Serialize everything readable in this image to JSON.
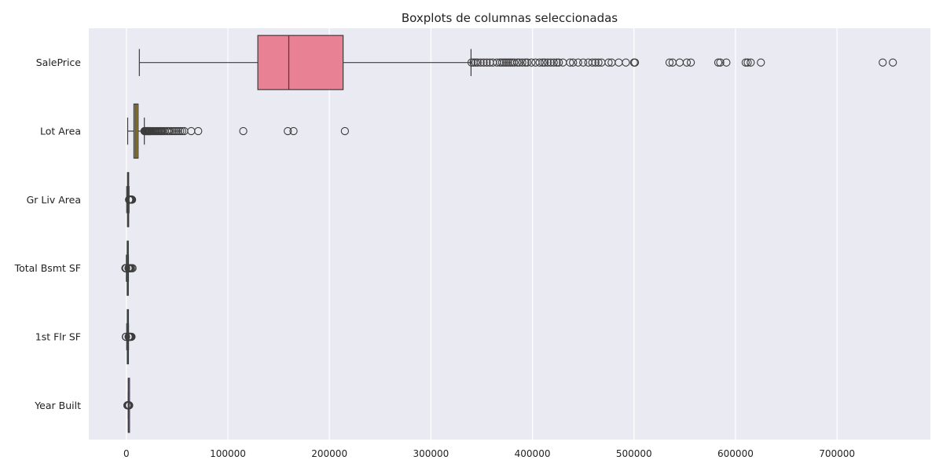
{
  "chart_data": {
    "type": "boxplot",
    "orientation": "horizontal",
    "title": "Boxplots de columnas seleccionadas",
    "xlabel": "",
    "ylabel": "",
    "xlim": [
      -37000,
      792000
    ],
    "x_ticks": [
      0,
      100000,
      200000,
      300000,
      400000,
      500000,
      600000,
      700000
    ],
    "x_tick_labels": [
      "0",
      "100000",
      "200000",
      "300000",
      "400000",
      "500000",
      "600000",
      "700000"
    ],
    "grid": true,
    "legend": "none",
    "background": "#eaeaf2",
    "grid_color": "#ffffff",
    "series": [
      {
        "category": "SalePrice",
        "color": "#e88194",
        "whisker_low": 12789,
        "q1": 129500,
        "median": 160000,
        "q3": 213500,
        "whisker_high": 339500,
        "outliers": [
          340000,
          342000,
          344000,
          346000,
          349000,
          352000,
          355000,
          358000,
          361000,
          365000,
          368000,
          370000,
          372000,
          374000,
          376000,
          378000,
          380000,
          382000,
          385000,
          387000,
          390000,
          393000,
          395000,
          399000,
          403000,
          407000,
          410000,
          412000,
          415000,
          418000,
          421000,
          424000,
          426000,
          430000,
          437000,
          440000,
          445000,
          450000,
          455000,
          459000,
          462000,
          465000,
          468000,
          475000,
          478000,
          485000,
          492000,
          500000,
          501000,
          535000,
          538000,
          545000,
          552000,
          556000,
          583000,
          585000,
          591000,
          610000,
          612000,
          615000,
          625000,
          745000,
          755000
        ]
      },
      {
        "category": "Lot Area",
        "color": "#9e8a3c",
        "whisker_low": 1300,
        "q1": 7440,
        "median": 9436,
        "q3": 11555,
        "whisker_high": 17700,
        "outliers": [
          17800,
          18500,
          19000,
          19500,
          20000,
          20500,
          21000,
          21500,
          22000,
          22500,
          23000,
          23500,
          24000,
          25000,
          26000,
          27000,
          28000,
          29000,
          30000,
          31000,
          32000,
          33000,
          34000,
          35000,
          36500,
          38000,
          40000,
          41500,
          43000,
          45000,
          47000,
          49000,
          51000,
          53000,
          55000,
          57000,
          63887,
          70761,
          115149,
          159000,
          164660,
          215245
        ]
      },
      {
        "category": "Gr Liv Area",
        "color": "#5a9e3c",
        "whisker_low": 334,
        "q1": 1126,
        "median": 1442,
        "q3": 1743,
        "whisker_high": 2667,
        "outliers": [
          2700,
          2800,
          2900,
          3000,
          3100,
          3200,
          3300,
          3400,
          3500,
          3600,
          3700,
          3800,
          3900,
          4000,
          4300,
          4500,
          4700,
          5000,
          5095,
          5642
        ]
      },
      {
        "category": "Total Bsmt SF",
        "color": "#3aa585",
        "whisker_low": 0,
        "q1": 793,
        "median": 990,
        "q3": 1302,
        "whisker_high": 2065,
        "outliers": [
          -1000,
          -800,
          -600,
          -400,
          -200,
          2100,
          2200,
          2300,
          2400,
          2600,
          2800,
          3000,
          3200,
          3500,
          4000,
          5095,
          6110
        ]
      },
      {
        "category": "1st Flr SF",
        "color": "#3a9bbf",
        "whisker_low": 334,
        "q1": 876,
        "median": 1084,
        "q3": 1384,
        "whisker_high": 2144,
        "outliers": [
          -600,
          -300,
          2200,
          2300,
          2400,
          2500,
          2600,
          2800,
          3000,
          3200,
          3500,
          3800,
          4000,
          4500,
          5095
        ]
      },
      {
        "category": "Year Built",
        "color": "#b886e0",
        "whisker_low": 1879,
        "q1": 1954,
        "median": 1973,
        "q3": 2001,
        "whisker_high": 2010,
        "outliers": [
          1000,
          1300,
          1600,
          1872,
          1875,
          2200,
          2500,
          2800
        ]
      }
    ]
  }
}
